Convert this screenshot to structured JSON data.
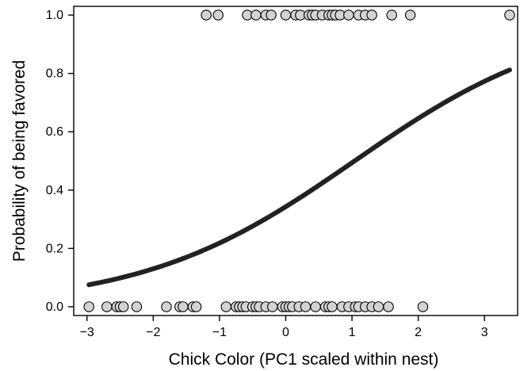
{
  "chart_data": {
    "type": "scatter",
    "title": "",
    "xlabel": "Chick Color (PC1 scaled within nest)",
    "ylabel": "Probability of being favored",
    "xlim": [
      -3.2,
      3.5
    ],
    "ylim": [
      -0.03,
      1.03
    ],
    "xticks": [
      -3,
      -2,
      -1,
      0,
      1,
      2,
      3
    ],
    "yticks": [
      0.0,
      0.2,
      0.4,
      0.6,
      0.8,
      1.0
    ],
    "xtick_labels": [
      "−3",
      "−2",
      "−1",
      "0",
      "1",
      "2",
      "3"
    ],
    "ytick_labels": [
      "0.0",
      "0.2",
      "0.4",
      "0.6",
      "0.8",
      "1.0"
    ],
    "grid": false,
    "series": [
      {
        "type": "scatter",
        "y": 0,
        "x": [
          -2.97,
          -2.7,
          -2.55,
          -2.5,
          -2.45,
          -2.25,
          -1.8,
          -1.6,
          -1.55,
          -1.4,
          -1.35,
          -0.9,
          -0.75,
          -0.7,
          -0.65,
          -0.6,
          -0.5,
          -0.45,
          -0.4,
          -0.3,
          -0.2,
          -0.05,
          0.0,
          0.05,
          0.1,
          0.2,
          0.3,
          0.45,
          0.6,
          0.65,
          0.7,
          0.85,
          0.95,
          1.05,
          1.1,
          1.2,
          1.3,
          1.4,
          1.55,
          2.07
        ]
      },
      {
        "type": "scatter",
        "y": 1,
        "x": [
          -1.2,
          -1.02,
          -0.58,
          -0.45,
          -0.3,
          -0.22,
          0.0,
          0.15,
          0.22,
          0.35,
          0.4,
          0.45,
          0.55,
          0.65,
          0.7,
          0.75,
          0.82,
          0.95,
          1.1,
          1.2,
          1.3,
          1.6,
          1.88,
          3.38
        ]
      },
      {
        "type": "line",
        "model": "logistic",
        "x_range": [
          -2.97,
          3.38
        ],
        "intercept": -0.65,
        "slope": 0.625
      }
    ]
  }
}
